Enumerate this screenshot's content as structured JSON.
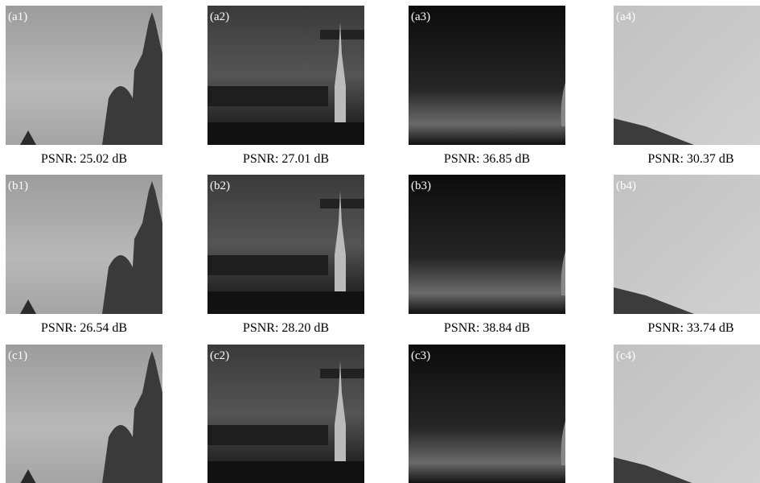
{
  "panels": [
    {
      "label": "(a1)",
      "caption": "PSNR: 25.02 dB"
    },
    {
      "label": "(a2)",
      "caption": "PSNR: 27.01 dB"
    },
    {
      "label": "(a3)",
      "caption": "PSNR: 36.85 dB"
    },
    {
      "label": "(a4)",
      "caption": "PSNR: 30.37 dB"
    },
    {
      "label": "(b1)",
      "caption": "PSNR: 26.54 dB"
    },
    {
      "label": "(b2)",
      "caption": "PSNR: 28.20 dB"
    },
    {
      "label": "(b3)",
      "caption": "PSNR: 38.84 dB"
    },
    {
      "label": "(b4)",
      "caption": "PSNR: 33.74 dB"
    },
    {
      "label": "(c1)"
    },
    {
      "label": "(c2)"
    },
    {
      "label": "(c3)"
    },
    {
      "label": "(c4)"
    }
  ]
}
